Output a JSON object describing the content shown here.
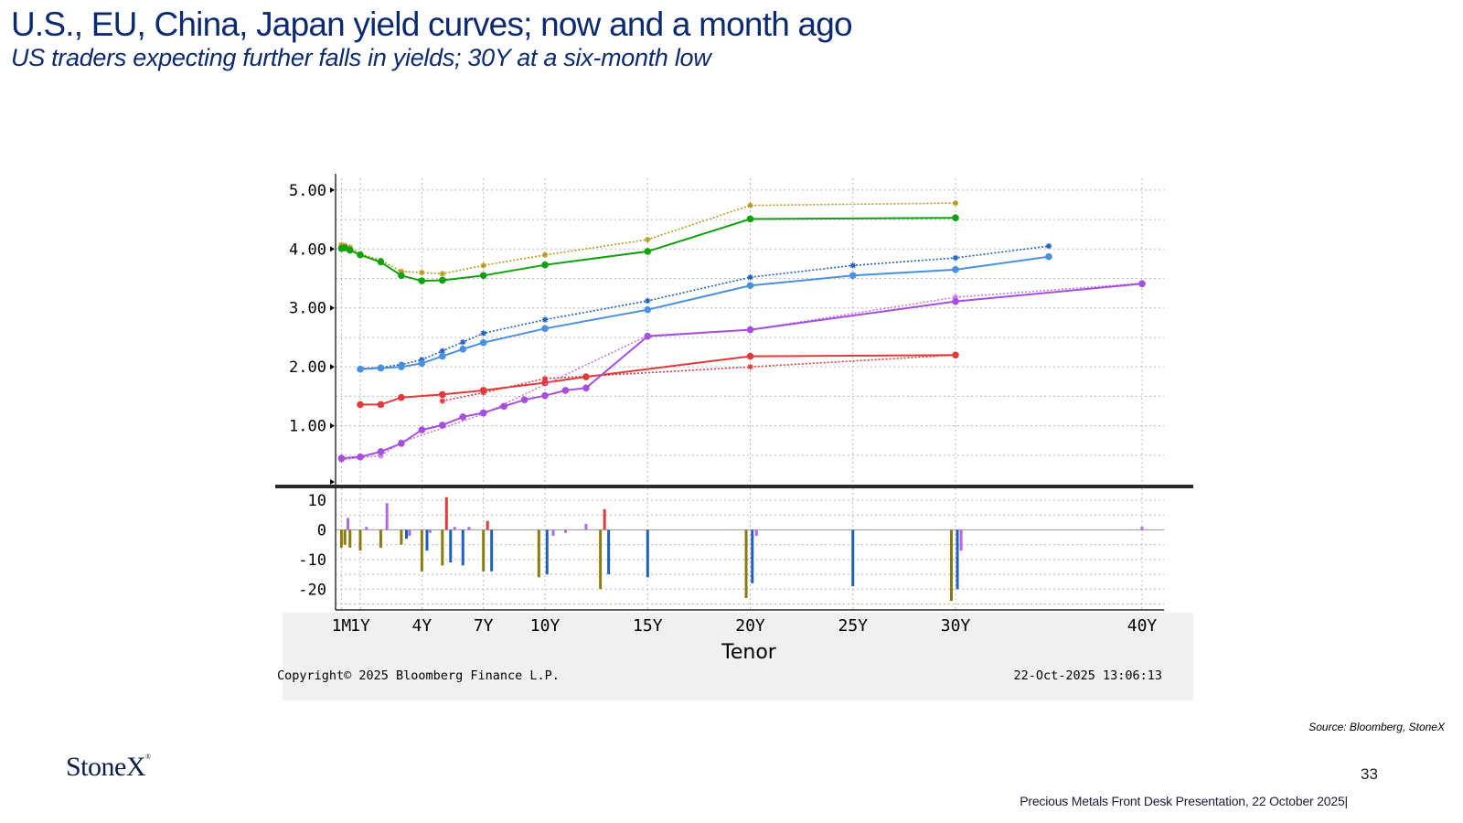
{
  "slide": {
    "title": "U.S., EU, China, Japan yield curves; now and a month ago",
    "subtitle": "US traders expecting further falls in yields; 30Y at a six-month low",
    "source": "Source: Bloomberg, StoneX",
    "logo": "StoneX",
    "page_number": "33",
    "footer": "Precious Metals Front Desk Presentation, 22 October 2025|"
  },
  "chart_data": {
    "type": "line",
    "xlabel": "Tenor",
    "copyright": "Copyright© 2025 Bloomberg Finance L.P.",
    "timestamp": "22-Oct-2025 13:06:13",
    "x_ticks": [
      {
        "label": "1M",
        "years": 0.083
      },
      {
        "label": "1Y",
        "years": 1
      },
      {
        "label": "4Y",
        "years": 4
      },
      {
        "label": "7Y",
        "years": 7
      },
      {
        "label": "10Y",
        "years": 10
      },
      {
        "label": "15Y",
        "years": 15
      },
      {
        "label": "20Y",
        "years": 20
      },
      {
        "label": "25Y",
        "years": 25
      },
      {
        "label": "30Y",
        "years": 30
      },
      {
        "label": "40Y",
        "years": 40
      }
    ],
    "upper_panel": {
      "ylim": [
        0,
        5.2
      ],
      "y_ticks": [
        "5.00",
        "4.00",
        "3.00",
        "2.00",
        "1.00"
      ],
      "series": [
        {
          "color": "#b59a1e",
          "style": "dotted",
          "marker": "star",
          "points": [
            [
              0.083,
              4.07
            ],
            [
              0.25,
              4.06
            ],
            [
              0.5,
              4.03
            ],
            [
              1,
              3.92
            ],
            [
              2,
              3.81
            ],
            [
              3,
              3.62
            ],
            [
              4,
              3.6
            ],
            [
              5,
              3.58
            ],
            [
              7,
              3.72
            ],
            [
              10,
              3.9
            ],
            [
              15,
              4.16
            ],
            [
              20,
              4.74
            ],
            [
              30,
              4.78
            ]
          ]
        },
        {
          "color": "#10a010",
          "style": "solid",
          "marker": "dot",
          "points": [
            [
              0.083,
              4.01
            ],
            [
              0.25,
              4.02
            ],
            [
              0.5,
              3.98
            ],
            [
              1,
              3.9
            ],
            [
              2,
              3.78
            ],
            [
              3,
              3.55
            ],
            [
              4,
              3.46
            ],
            [
              5,
              3.47
            ],
            [
              7,
              3.55
            ],
            [
              10,
              3.73
            ],
            [
              15,
              3.96
            ],
            [
              20,
              4.51
            ],
            [
              30,
              4.53
            ]
          ]
        },
        {
          "color": "#1f5fbf",
          "style": "dotted",
          "marker": "star",
          "points": [
            [
              1,
              1.97
            ],
            [
              2,
              1.99
            ],
            [
              3,
              2.04
            ],
            [
              4,
              2.12
            ],
            [
              5,
              2.27
            ],
            [
              6,
              2.42
            ],
            [
              7,
              2.57
            ],
            [
              10,
              2.8
            ],
            [
              15,
              3.12
            ],
            [
              20,
              3.52
            ],
            [
              25,
              3.72
            ],
            [
              30,
              3.85
            ],
            [
              35,
              4.05
            ]
          ]
        },
        {
          "color": "#4a90e2",
          "style": "solid",
          "marker": "dot",
          "points": [
            [
              1,
              1.96
            ],
            [
              2,
              1.98
            ],
            [
              3,
              2.0
            ],
            [
              4,
              2.06
            ],
            [
              5,
              2.18
            ],
            [
              6,
              2.3
            ],
            [
              7,
              2.41
            ],
            [
              10,
              2.65
            ],
            [
              15,
              2.97
            ],
            [
              20,
              3.38
            ],
            [
              25,
              3.55
            ],
            [
              30,
              3.65
            ],
            [
              35,
              3.87
            ]
          ]
        },
        {
          "color": "#e03a3a",
          "style": "dotted",
          "marker": "star",
          "points": [
            [
              5,
              1.42
            ],
            [
              7,
              1.56
            ],
            [
              10,
              1.8
            ],
            [
              20,
              2.0
            ],
            [
              30,
              2.2
            ]
          ]
        },
        {
          "color": "#e03a3a",
          "style": "solid",
          "marker": "dot",
          "points": [
            [
              1,
              1.36
            ],
            [
              2,
              1.36
            ],
            [
              3,
              1.48
            ],
            [
              5,
              1.53
            ],
            [
              7,
              1.6
            ],
            [
              10,
              1.73
            ],
            [
              12,
              1.83
            ],
            [
              20,
              2.18
            ],
            [
              30,
              2.2
            ]
          ]
        },
        {
          "color": "#c47ae8",
          "style": "dotted",
          "marker": "star",
          "points": [
            [
              0.083,
              0.42
            ],
            [
              1,
              0.46
            ],
            [
              2,
              0.49
            ],
            [
              3,
              0.72
            ],
            [
              7,
              1.2
            ],
            [
              15,
              2.53
            ],
            [
              20,
              2.63
            ],
            [
              30,
              3.18
            ],
            [
              40,
              3.42
            ]
          ]
        },
        {
          "color": "#a64ee0",
          "style": "solid",
          "marker": "dot",
          "points": [
            [
              0.083,
              0.45
            ],
            [
              1,
              0.47
            ],
            [
              2,
              0.56
            ],
            [
              3,
              0.7
            ],
            [
              4,
              0.93
            ],
            [
              5,
              1.01
            ],
            [
              6,
              1.15
            ],
            [
              7,
              1.22
            ],
            [
              8,
              1.33
            ],
            [
              9,
              1.44
            ],
            [
              10,
              1.51
            ],
            [
              11,
              1.6
            ],
            [
              12,
              1.64
            ],
            [
              15,
              2.52
            ],
            [
              20,
              2.63
            ],
            [
              30,
              3.11
            ],
            [
              40,
              3.41
            ]
          ]
        }
      ]
    },
    "lower_panel": {
      "ylim": [
        -27,
        14
      ],
      "y_ticks": [
        "10",
        "0",
        "-10",
        "-20"
      ],
      "bars": [
        {
          "x": 0.083,
          "color": "#8a7a10",
          "value": -6
        },
        {
          "x": 0.25,
          "color": "#8a7a10",
          "value": -5
        },
        {
          "x": 0.4,
          "color": "#b069e6",
          "value": 4
        },
        {
          "x": 0.5,
          "color": "#8a7a10",
          "value": -6
        },
        {
          "x": 1,
          "color": "#8a7a10",
          "value": -7
        },
        {
          "x": 1.3,
          "color": "#b069e6",
          "value": 1
        },
        {
          "x": 2,
          "color": "#8a7a10",
          "value": -6
        },
        {
          "x": 2.3,
          "color": "#b069e6",
          "value": 9
        },
        {
          "x": 3,
          "color": "#8a7a10",
          "value": -5
        },
        {
          "x": 3.25,
          "color": "#1f5fbf",
          "value": -3
        },
        {
          "x": 3.4,
          "color": "#b069e6",
          "value": -2
        },
        {
          "x": 4,
          "color": "#8a7a10",
          "value": -14
        },
        {
          "x": 4.25,
          "color": "#1f5fbf",
          "value": -7
        },
        {
          "x": 4.4,
          "color": "#b069e6",
          "value": -1
        },
        {
          "x": 5,
          "color": "#8a7a10",
          "value": -12
        },
        {
          "x": 5.2,
          "color": "#e03a3a",
          "value": 11
        },
        {
          "x": 5.4,
          "color": "#1f5fbf",
          "value": -11
        },
        {
          "x": 5.6,
          "color": "#b069e6",
          "value": 1
        },
        {
          "x": 6,
          "color": "#1f5fbf",
          "value": -12
        },
        {
          "x": 6.3,
          "color": "#b069e6",
          "value": 1
        },
        {
          "x": 7,
          "color": "#8a7a10",
          "value": -14
        },
        {
          "x": 7.2,
          "color": "#e03a3a",
          "value": 3
        },
        {
          "x": 7.4,
          "color": "#1f5fbf",
          "value": -14
        },
        {
          "x": 9.7,
          "color": "#8a7a10",
          "value": -16
        },
        {
          "x": 10.1,
          "color": "#1f5fbf",
          "value": -15
        },
        {
          "x": 10.4,
          "color": "#b069e6",
          "value": -2
        },
        {
          "x": 11,
          "color": "#b069e6",
          "value": -1
        },
        {
          "x": 12,
          "color": "#b069e6",
          "value": 2
        },
        {
          "x": 12.7,
          "color": "#8a7a10",
          "value": -20
        },
        {
          "x": 12.9,
          "color": "#e03a3a",
          "value": 7
        },
        {
          "x": 13.1,
          "color": "#1f5fbf",
          "value": -15
        },
        {
          "x": 15,
          "color": "#1f5fbf",
          "value": -16
        },
        {
          "x": 19.8,
          "color": "#8a7a10",
          "value": -23
        },
        {
          "x": 20.1,
          "color": "#1f5fbf",
          "value": -18
        },
        {
          "x": 20.3,
          "color": "#b069e6",
          "value": -2
        },
        {
          "x": 25,
          "color": "#1f5fbf",
          "value": -19
        },
        {
          "x": 29.8,
          "color": "#8a7a10",
          "value": -24
        },
        {
          "x": 30.1,
          "color": "#1f5fbf",
          "value": -20
        },
        {
          "x": 30.3,
          "color": "#b069e6",
          "value": -7
        },
        {
          "x": 40,
          "color": "#b069e6",
          "value": 1
        }
      ]
    }
  }
}
